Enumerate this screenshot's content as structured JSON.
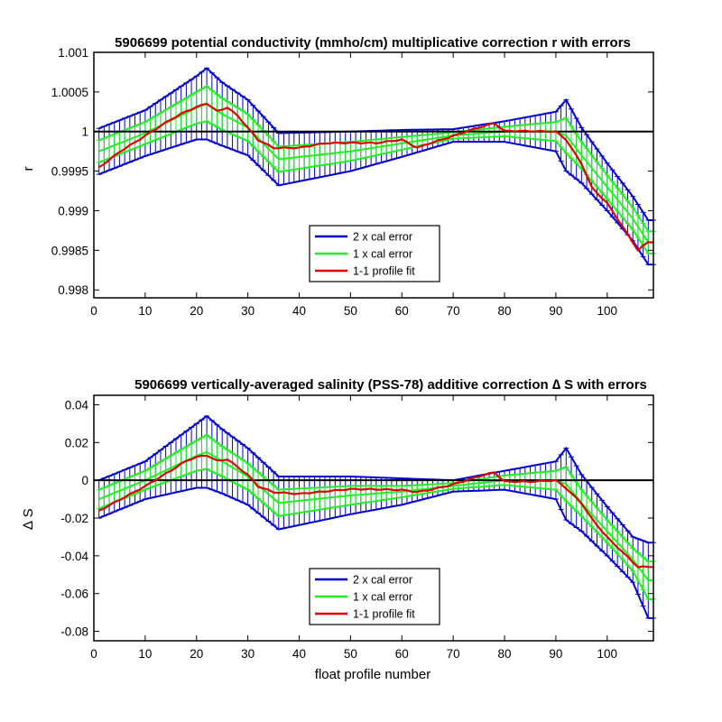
{
  "chart_data": [
    {
      "type": "line",
      "title": "5906699 potential conductivity (mmho/cm) multiplicative correction r with errors",
      "xlabel": "",
      "ylabel": "r",
      "xlim": [
        0,
        109
      ],
      "ylim": [
        0.9979,
        1.001
      ],
      "xticks": [
        "0",
        "10",
        "20",
        "30",
        "40",
        "50",
        "60",
        "70",
        "80",
        "90",
        "100"
      ],
      "yticks": [
        "0.998",
        "0.9985",
        "0.999",
        "0.9995",
        "1",
        "1.0005",
        "1.001"
      ],
      "ytick_values": [
        0.998,
        0.9985,
        0.999,
        0.9995,
        1.0,
        1.0005,
        1.001
      ],
      "reference_line": 1.0,
      "legend": {
        "position": "bottom-center",
        "entries": [
          "2 x cal error",
          "1 x cal error",
          "1-1 profile fit"
        ]
      },
      "colors": {
        "two_x": "#0000cc",
        "one_x": "#22ee22",
        "fit": "#dd0000",
        "reference": "#000000"
      },
      "series": [
        {
          "name": "2 x cal error",
          "role": "error_bars",
          "x": [
            1,
            10,
            20,
            22,
            25,
            30,
            36,
            50,
            60,
            70,
            80,
            90,
            92,
            95,
            100,
            105,
            108
          ],
          "mean": [
            0.99975,
            0.99998,
            1.0003,
            1.00035,
            1.00022,
            1.00005,
            0.99965,
            0.99975,
            0.99985,
            0.99995,
            1.0,
            1.0,
            0.99995,
            0.9997,
            0.9993,
            0.9989,
            0.9986
          ],
          "half_range": [
            0.00029,
            0.00029,
            0.0004,
            0.00045,
            0.0004,
            0.00035,
            0.00033,
            0.00025,
            0.00017,
            8e-05,
            0.00013,
            0.00025,
            0.00045,
            0.00035,
            0.0003,
            0.00028,
            0.00028
          ]
        },
        {
          "name": "1 x cal error",
          "role": "error_bars",
          "x": [
            1,
            10,
            20,
            22,
            25,
            30,
            36,
            50,
            60,
            70,
            80,
            90,
            92,
            95,
            100,
            105,
            108
          ],
          "mean": [
            0.99975,
            0.99998,
            1.0003,
            1.00035,
            1.00022,
            1.00005,
            0.99965,
            0.99975,
            0.99985,
            0.99995,
            1.0,
            1.0,
            0.99995,
            0.9997,
            0.9993,
            0.9989,
            0.9986
          ],
          "half_range": [
            0.00014,
            0.00014,
            0.0002,
            0.00022,
            0.0002,
            0.00017,
            0.00016,
            0.00012,
            8e-05,
            4e-05,
            6e-05,
            0.00012,
            0.00022,
            0.00017,
            0.00015,
            0.00014,
            0.00014
          ]
        },
        {
          "name": "1-1 profile fit",
          "role": "line",
          "x": [
            1,
            5,
            10,
            15,
            18,
            20,
            22,
            24,
            26,
            28,
            30,
            32,
            35,
            40,
            45,
            50,
            55,
            60,
            63,
            65,
            70,
            75,
            78,
            80,
            85,
            90,
            92,
            95,
            97,
            100,
            103,
            106,
            108
          ],
          "y": [
            0.99955,
            0.99975,
            0.99995,
            1.00015,
            1.00025,
            1.0003,
            1.00035,
            1.00025,
            1.0003,
            1.0002,
            1.00005,
            0.9999,
            0.9998,
            0.9998,
            0.99985,
            0.99985,
            0.99985,
            0.9999,
            0.9998,
            0.99985,
            0.99995,
            1.00005,
            1.0001,
            1.0,
            1.0,
            1.0,
            0.9999,
            0.9996,
            0.9993,
            0.9991,
            0.9988,
            0.9985,
            0.9986
          ]
        }
      ]
    },
    {
      "type": "line",
      "title": "5906699 vertically-averaged salinity (PSS-78) additive correction ∆ S with errors",
      "xlabel": "float profile number",
      "ylabel": "∆ S",
      "xlim": [
        0,
        109
      ],
      "ylim": [
        -0.085,
        0.045
      ],
      "xticks": [
        "0",
        "10",
        "20",
        "30",
        "40",
        "50",
        "60",
        "70",
        "80",
        "90",
        "100"
      ],
      "yticks": [
        "-0.08",
        "-0.06",
        "-0.04",
        "-0.02",
        "0",
        "0.02",
        "0.04"
      ],
      "ytick_values": [
        -0.08,
        -0.06,
        -0.04,
        -0.02,
        0.0,
        0.02,
        0.04
      ],
      "reference_line": 0.0,
      "legend": {
        "position": "bottom-center",
        "entries": [
          "2 x cal error",
          "1 x cal error",
          "1-1 profile fit"
        ]
      },
      "colors": {
        "two_x": "#0000cc",
        "one_x": "#22ee22",
        "fit": "#dd0000",
        "reference": "#000000"
      },
      "series": [
        {
          "name": "2 x cal error",
          "role": "error_bars",
          "x": [
            1,
            10,
            20,
            22,
            25,
            30,
            36,
            50,
            60,
            70,
            80,
            90,
            92,
            95,
            100,
            105,
            108
          ],
          "mean": [
            -0.01,
            0.0,
            0.013,
            0.015,
            0.01,
            0.002,
            -0.012,
            -0.008,
            -0.006,
            -0.003,
            0.0,
            0.0,
            -0.002,
            -0.012,
            -0.027,
            -0.042,
            -0.053
          ],
          "half_range": [
            0.01,
            0.01,
            0.017,
            0.019,
            0.017,
            0.015,
            0.014,
            0.01,
            0.007,
            0.003,
            0.005,
            0.01,
            0.019,
            0.015,
            0.013,
            0.012,
            0.02
          ]
        },
        {
          "name": "1 x cal error",
          "role": "error_bars",
          "x": [
            1,
            10,
            20,
            22,
            25,
            30,
            36,
            50,
            60,
            70,
            80,
            90,
            92,
            95,
            100,
            105,
            108
          ],
          "mean": [
            -0.01,
            0.0,
            0.013,
            0.015,
            0.01,
            0.002,
            -0.012,
            -0.008,
            -0.006,
            -0.003,
            0.0,
            0.0,
            -0.002,
            -0.012,
            -0.027,
            -0.042,
            -0.053
          ],
          "half_range": [
            0.005,
            0.005,
            0.008,
            0.009,
            0.008,
            0.007,
            0.007,
            0.005,
            0.003,
            0.0015,
            0.0025,
            0.005,
            0.009,
            0.007,
            0.006,
            0.006,
            0.01
          ]
        },
        {
          "name": "1-1 profile fit",
          "role": "line",
          "x": [
            1,
            5,
            10,
            15,
            18,
            20,
            22,
            24,
            26,
            28,
            30,
            32,
            35,
            40,
            45,
            50,
            55,
            60,
            63,
            65,
            70,
            75,
            78,
            80,
            85,
            90,
            92,
            95,
            97,
            100,
            103,
            106,
            108
          ],
          "y": [
            -0.016,
            -0.01,
            -0.003,
            0.005,
            0.01,
            0.012,
            0.013,
            0.01,
            0.011,
            0.007,
            0.003,
            -0.003,
            -0.006,
            -0.007,
            -0.006,
            -0.005,
            -0.005,
            -0.005,
            -0.006,
            -0.005,
            -0.002,
            0.002,
            0.004,
            -0.001,
            -0.001,
            0.0,
            -0.004,
            -0.012,
            -0.02,
            -0.03,
            -0.038,
            -0.046,
            -0.046
          ]
        }
      ]
    }
  ]
}
